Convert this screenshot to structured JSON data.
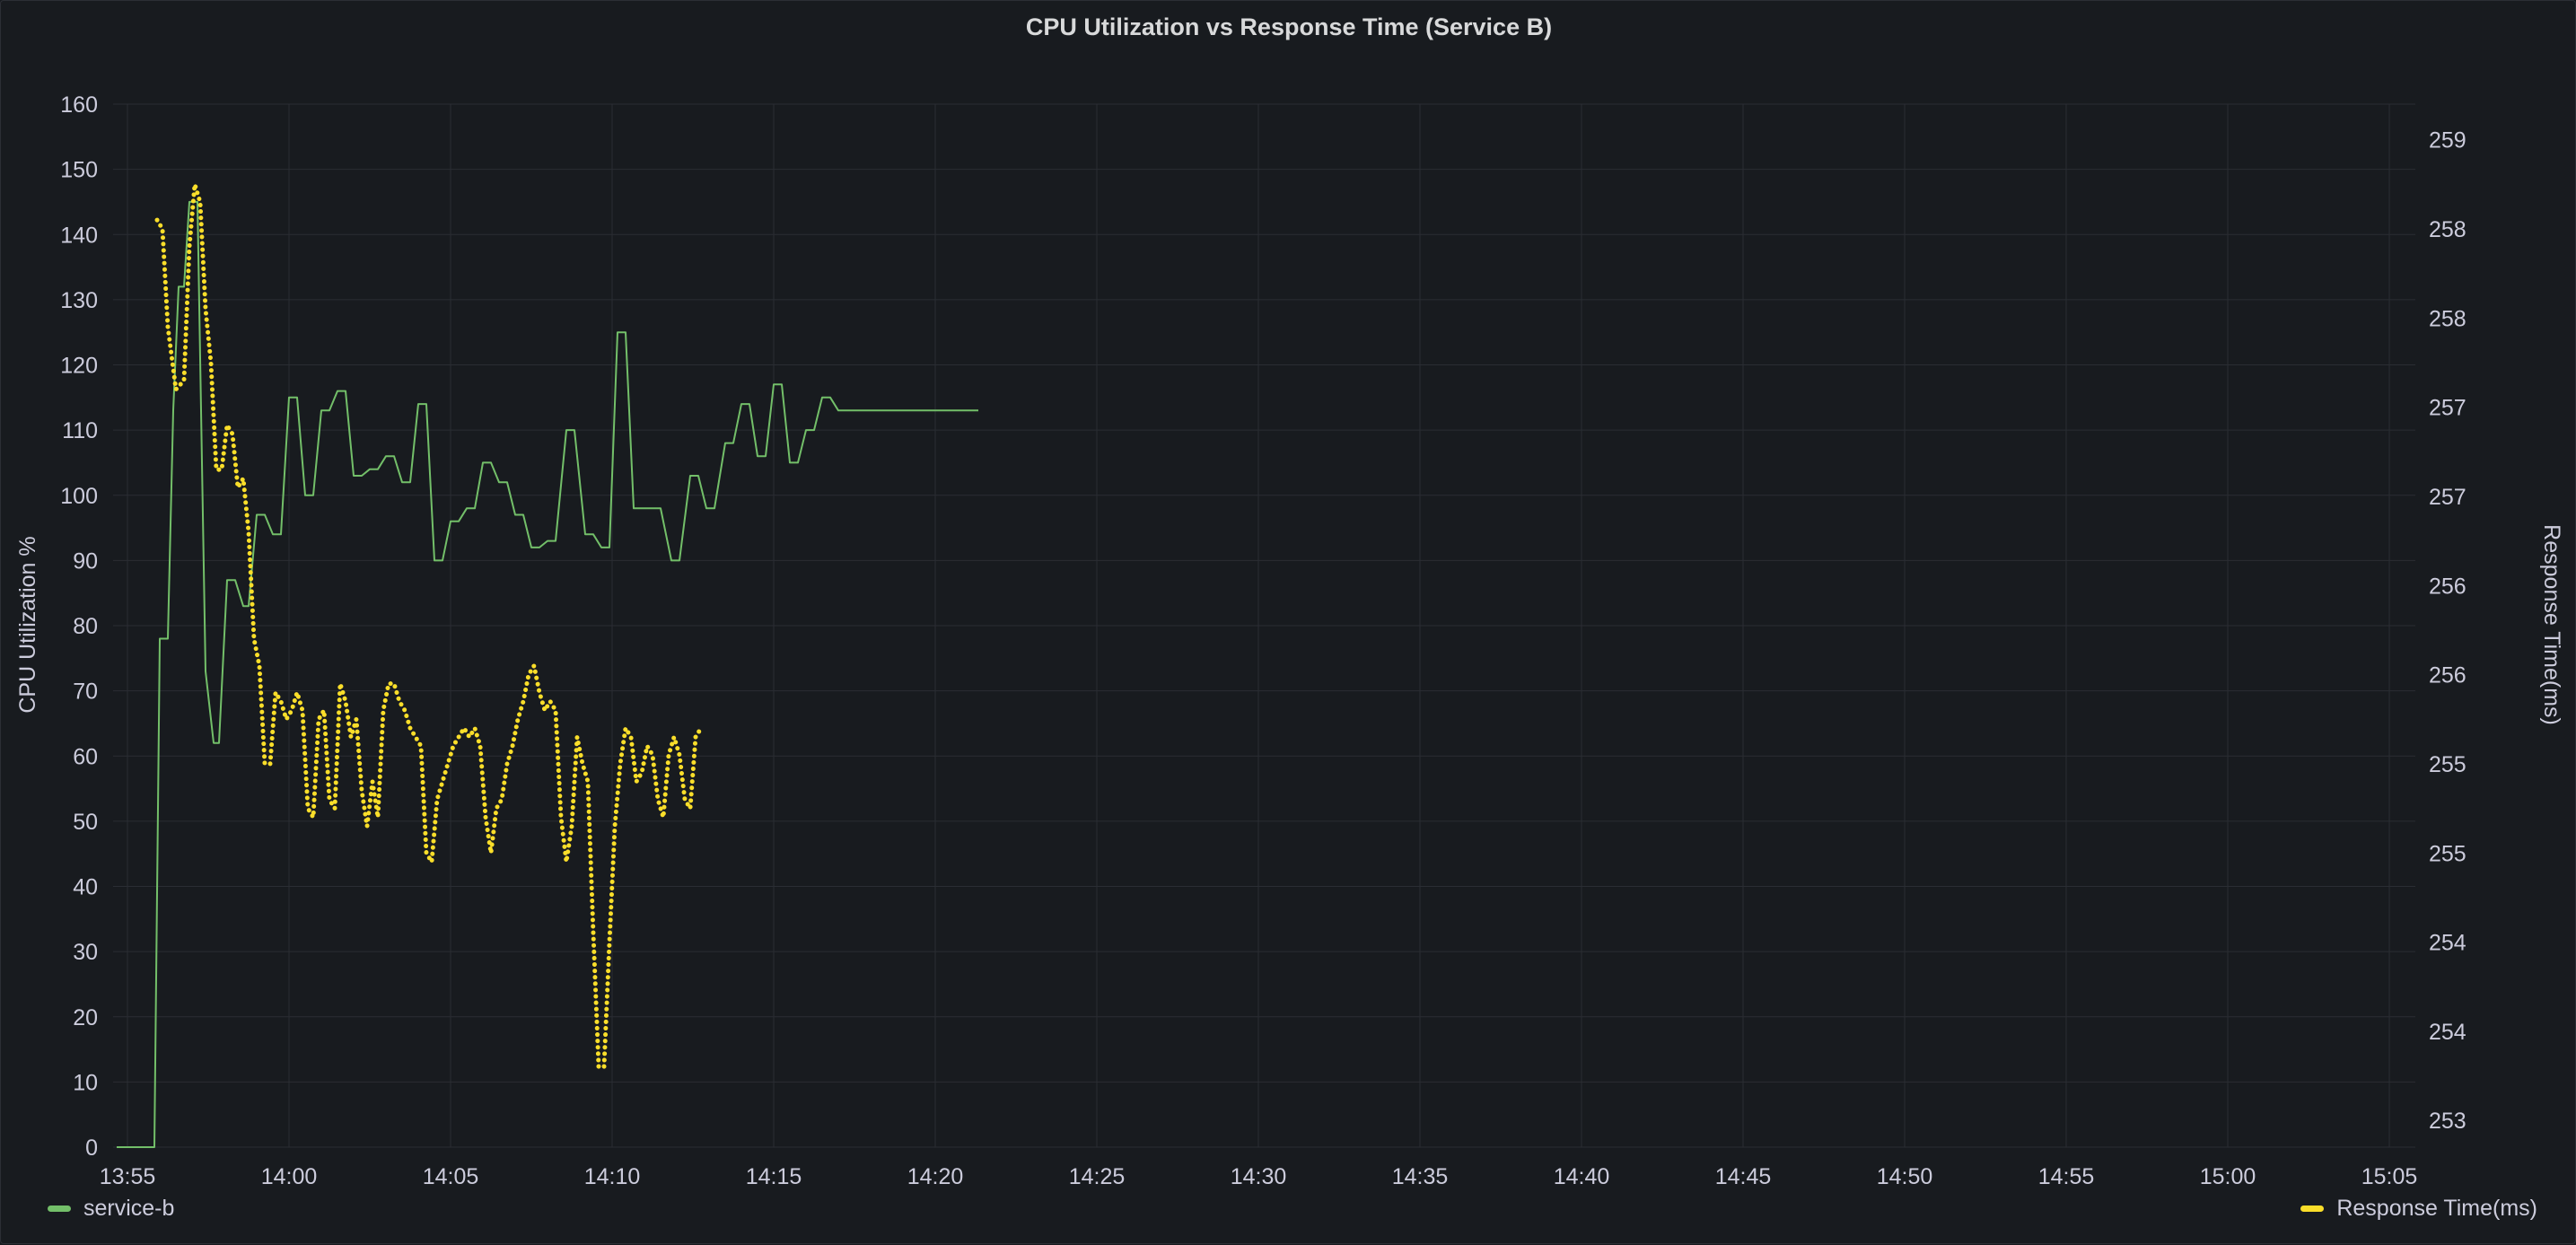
{
  "panel": {
    "title": "CPU Utilization vs Response Time (Service B)"
  },
  "colors": {
    "background": "#181b1f",
    "grid": "#2a2d33",
    "cpu_series": "#73bf69",
    "response_series": "#fade2a",
    "text": "#ccccdc"
  },
  "legend": {
    "left_label": "service-b",
    "right_label": "Response Time(ms)"
  },
  "chart_data": {
    "type": "line",
    "title": "CPU Utilization vs Response Time (Service B)",
    "legend_placement": "bottom-left / bottom-right",
    "grid": true,
    "x_axis": {
      "ticks": [
        "13:55",
        "14:00",
        "14:05",
        "14:10",
        "14:15",
        "14:20",
        "14:25",
        "14:30",
        "14:35",
        "14:40",
        "14:45",
        "14:50",
        "14:55",
        "15:00",
        "15:05"
      ],
      "range": [
        "13:55",
        "15:05"
      ]
    },
    "y_left": {
      "label": "CPU Utilization %",
      "ticks": [
        "0",
        "10",
        "20",
        "30",
        "40",
        "50",
        "60",
        "70",
        "80",
        "90",
        "100",
        "110",
        "120",
        "130",
        "140",
        "150",
        "160"
      ],
      "range": [
        0,
        160
      ]
    },
    "y_right": {
      "label": "Response Time(ms)",
      "tick_labels": [
        "259",
        "258",
        "258",
        "257",
        "257",
        "256",
        "256",
        "255",
        "255",
        "254",
        "254",
        "253"
      ],
      "tick_values": [
        258.8,
        258.3,
        257.8,
        257.3,
        256.8,
        256.3,
        255.8,
        255.3,
        254.8,
        254.3,
        253.8,
        253.3
      ],
      "range": [
        253.15,
        259.0
      ]
    },
    "series": [
      {
        "name": "service-b",
        "axis": "left",
        "style": "solid",
        "points": [
          [
            "13:54:40",
            0
          ],
          [
            "13:55:50",
            0
          ],
          [
            "13:56:00",
            78
          ],
          [
            "13:56:15",
            78
          ],
          [
            "13:56:25",
            113
          ],
          [
            "13:56:35",
            132
          ],
          [
            "13:56:45",
            132
          ],
          [
            "13:56:55",
            145
          ],
          [
            "13:57:10",
            145
          ],
          [
            "13:57:25",
            73
          ],
          [
            "13:57:40",
            62
          ],
          [
            "13:57:50",
            62
          ],
          [
            "13:58:05",
            87
          ],
          [
            "13:58:20",
            87
          ],
          [
            "13:58:35",
            83
          ],
          [
            "13:58:45",
            83
          ],
          [
            "13:59:00",
            97
          ],
          [
            "13:59:15",
            97
          ],
          [
            "13:59:30",
            94
          ],
          [
            "13:59:45",
            94
          ],
          [
            "14:00:00",
            115
          ],
          [
            "14:00:15",
            115
          ],
          [
            "14:00:30",
            100
          ],
          [
            "14:00:45",
            100
          ],
          [
            "14:01:00",
            113
          ],
          [
            "14:01:15",
            113
          ],
          [
            "14:01:30",
            116
          ],
          [
            "14:01:45",
            116
          ],
          [
            "14:02:00",
            103
          ],
          [
            "14:02:15",
            103
          ],
          [
            "14:02:30",
            104
          ],
          [
            "14:02:45",
            104
          ],
          [
            "14:03:00",
            106
          ],
          [
            "14:03:15",
            106
          ],
          [
            "14:03:30",
            102
          ],
          [
            "14:03:45",
            102
          ],
          [
            "14:04:00",
            114
          ],
          [
            "14:04:15",
            114
          ],
          [
            "14:04:30",
            90
          ],
          [
            "14:04:45",
            90
          ],
          [
            "14:05:00",
            96
          ],
          [
            "14:05:15",
            96
          ],
          [
            "14:05:30",
            98
          ],
          [
            "14:05:45",
            98
          ],
          [
            "14:06:00",
            105
          ],
          [
            "14:06:15",
            105
          ],
          [
            "14:06:30",
            102
          ],
          [
            "14:06:45",
            102
          ],
          [
            "14:07:00",
            97
          ],
          [
            "14:07:15",
            97
          ],
          [
            "14:07:30",
            92
          ],
          [
            "14:07:45",
            92
          ],
          [
            "14:08:00",
            93
          ],
          [
            "14:08:15",
            93
          ],
          [
            "14:08:35",
            110
          ],
          [
            "14:08:50",
            110
          ],
          [
            "14:09:10",
            94
          ],
          [
            "14:09:25",
            94
          ],
          [
            "14:09:40",
            92
          ],
          [
            "14:09:55",
            92
          ],
          [
            "14:10:10",
            125
          ],
          [
            "14:10:25",
            125
          ],
          [
            "14:10:40",
            98
          ],
          [
            "14:11:00",
            98
          ],
          [
            "14:11:30",
            98
          ],
          [
            "14:11:50",
            90
          ],
          [
            "14:12:05",
            90
          ],
          [
            "14:12:25",
            103
          ],
          [
            "14:12:40",
            103
          ],
          [
            "14:12:55",
            98
          ],
          [
            "14:13:10",
            98
          ],
          [
            "14:13:30",
            108
          ],
          [
            "14:13:45",
            108
          ],
          [
            "14:14:00",
            114
          ],
          [
            "14:14:15",
            114
          ],
          [
            "14:14:30",
            106
          ],
          [
            "14:14:45",
            106
          ],
          [
            "14:15:00",
            117
          ],
          [
            "14:15:15",
            117
          ],
          [
            "14:15:30",
            105
          ],
          [
            "14:15:45",
            105
          ],
          [
            "14:16:00",
            110
          ],
          [
            "14:16:15",
            110
          ],
          [
            "14:16:30",
            115
          ],
          [
            "14:16:45",
            115
          ],
          [
            "14:17:00",
            113
          ],
          [
            "14:21:20",
            113
          ]
        ]
      },
      {
        "name": "Response Time(ms)",
        "axis": "right",
        "style": "dotted",
        "points": [
          [
            "13:55:55",
            258.35
          ],
          [
            "13:56:05",
            258.3
          ],
          [
            "13:56:15",
            257.75
          ],
          [
            "13:56:30",
            257.4
          ],
          [
            "13:56:45",
            257.45
          ],
          [
            "13:56:55",
            258.2
          ],
          [
            "13:57:05",
            258.55
          ],
          [
            "13:57:15",
            258.45
          ],
          [
            "13:57:25",
            257.85
          ],
          [
            "13:57:35",
            257.55
          ],
          [
            "13:57:45",
            256.95
          ],
          [
            "13:57:55",
            256.95
          ],
          [
            "13:58:05",
            257.2
          ],
          [
            "13:58:15",
            257.15
          ],
          [
            "13:58:25",
            256.85
          ],
          [
            "13:58:35",
            256.9
          ],
          [
            "13:58:45",
            256.6
          ],
          [
            "13:58:55",
            256.0
          ],
          [
            "13:59:05",
            255.85
          ],
          [
            "13:59:15",
            255.3
          ],
          [
            "13:59:25",
            255.3
          ],
          [
            "13:59:35",
            255.7
          ],
          [
            "13:59:45",
            255.65
          ],
          [
            "13:59:55",
            255.55
          ],
          [
            "14:00:05",
            255.6
          ],
          [
            "14:00:15",
            255.7
          ],
          [
            "14:00:25",
            255.6
          ],
          [
            "14:00:35",
            255.05
          ],
          [
            "14:00:45",
            255.0
          ],
          [
            "14:00:55",
            255.55
          ],
          [
            "14:01:05",
            255.6
          ],
          [
            "14:01:15",
            255.1
          ],
          [
            "14:01:25",
            255.05
          ],
          [
            "14:01:35",
            255.75
          ],
          [
            "14:01:45",
            255.65
          ],
          [
            "14:01:55",
            255.45
          ],
          [
            "14:02:05",
            255.55
          ],
          [
            "14:02:15",
            255.15
          ],
          [
            "14:02:25",
            254.95
          ],
          [
            "14:02:35",
            255.2
          ],
          [
            "14:02:45",
            255.0
          ],
          [
            "14:02:55",
            255.6
          ],
          [
            "14:03:05",
            255.75
          ],
          [
            "14:03:15",
            255.75
          ],
          [
            "14:03:25",
            255.65
          ],
          [
            "14:03:35",
            255.6
          ],
          [
            "14:03:45",
            255.5
          ],
          [
            "14:03:55",
            255.45
          ],
          [
            "14:04:05",
            255.4
          ],
          [
            "14:04:15",
            254.8
          ],
          [
            "14:04:25",
            254.75
          ],
          [
            "14:04:35",
            255.1
          ],
          [
            "14:04:45",
            255.2
          ],
          [
            "14:04:55",
            255.3
          ],
          [
            "14:05:05",
            255.4
          ],
          [
            "14:05:15",
            255.45
          ],
          [
            "14:05:25",
            255.5
          ],
          [
            "14:05:35",
            255.45
          ],
          [
            "14:05:45",
            255.5
          ],
          [
            "14:05:55",
            255.4
          ],
          [
            "14:06:05",
            255.0
          ],
          [
            "14:06:15",
            254.8
          ],
          [
            "14:06:25",
            255.05
          ],
          [
            "14:06:35",
            255.1
          ],
          [
            "14:06:45",
            255.3
          ],
          [
            "14:06:55",
            255.4
          ],
          [
            "14:07:05",
            255.55
          ],
          [
            "14:07:15",
            255.65
          ],
          [
            "14:07:25",
            255.8
          ],
          [
            "14:07:35",
            255.85
          ],
          [
            "14:07:45",
            255.7
          ],
          [
            "14:07:55",
            255.6
          ],
          [
            "14:08:05",
            255.65
          ],
          [
            "14:08:15",
            255.6
          ],
          [
            "14:08:25",
            255.0
          ],
          [
            "14:08:35",
            254.75
          ],
          [
            "14:08:45",
            254.95
          ],
          [
            "14:08:55",
            255.45
          ],
          [
            "14:09:05",
            255.3
          ],
          [
            "14:09:15",
            255.2
          ],
          [
            "14:09:25",
            254.35
          ],
          [
            "14:09:35",
            253.6
          ],
          [
            "14:09:45",
            253.6
          ],
          [
            "14:09:55",
            254.3
          ],
          [
            "14:10:05",
            254.95
          ],
          [
            "14:10:15",
            255.3
          ],
          [
            "14:10:25",
            255.5
          ],
          [
            "14:10:35",
            255.45
          ],
          [
            "14:10:45",
            255.2
          ],
          [
            "14:10:55",
            255.25
          ],
          [
            "14:11:05",
            255.4
          ],
          [
            "14:11:15",
            255.35
          ],
          [
            "14:11:25",
            255.1
          ],
          [
            "14:11:35",
            255.0
          ],
          [
            "14:11:45",
            255.35
          ],
          [
            "14:11:55",
            255.45
          ],
          [
            "14:12:05",
            255.35
          ],
          [
            "14:12:15",
            255.1
          ],
          [
            "14:12:25",
            255.05
          ],
          [
            "14:12:35",
            255.45
          ],
          [
            "14:12:45",
            255.5
          ]
        ]
      }
    ]
  }
}
